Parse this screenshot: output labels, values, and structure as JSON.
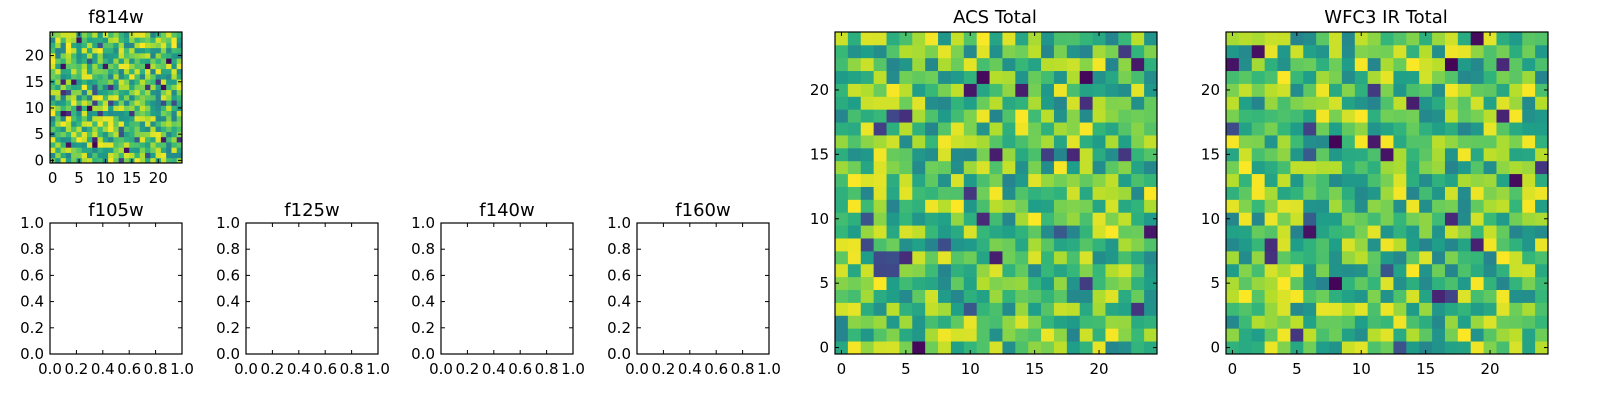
{
  "figure": {
    "panels": [
      {
        "key": "f814w",
        "title": "f814w",
        "kind": "image"
      },
      {
        "key": "f105w",
        "title": "f105w",
        "kind": "empty"
      },
      {
        "key": "f125w",
        "title": "f125w",
        "kind": "empty"
      },
      {
        "key": "f140w",
        "title": "f140w",
        "kind": "empty"
      },
      {
        "key": "f160w",
        "title": "f160w",
        "kind": "empty"
      },
      {
        "key": "acs_total",
        "title": "ACS Total",
        "kind": "image"
      },
      {
        "key": "wfc3_total",
        "title": "WFC3 IR Total",
        "kind": "image"
      }
    ]
  },
  "chart_data": [
    {
      "type": "heatmap",
      "title": "f814w",
      "x_ticks": [
        "0",
        "5",
        "10",
        "15",
        "20"
      ],
      "y_ticks": [
        "0",
        "5",
        "10",
        "15",
        "20"
      ],
      "xlim": [
        -0.5,
        24.5
      ],
      "ylim": [
        -0.5,
        24.5
      ],
      "grid_size": [
        25,
        25
      ],
      "colormap": "viridis",
      "seed": 814
    },
    {
      "type": "empty",
      "title": "f105w",
      "x_ticks": [
        "0.0",
        "0.2",
        "0.4",
        "0.6",
        "0.8",
        "1.0"
      ],
      "y_ticks": [
        "0.0",
        "0.2",
        "0.4",
        "0.6",
        "0.8",
        "1.0"
      ],
      "xlim": [
        0,
        1
      ],
      "ylim": [
        0,
        1
      ]
    },
    {
      "type": "empty",
      "title": "f125w",
      "x_ticks": [
        "0.0",
        "0.2",
        "0.4",
        "0.6",
        "0.8",
        "1.0"
      ],
      "y_ticks": [
        "0.0",
        "0.2",
        "0.4",
        "0.6",
        "0.8",
        "1.0"
      ],
      "xlim": [
        0,
        1
      ],
      "ylim": [
        0,
        1
      ]
    },
    {
      "type": "empty",
      "title": "f140w",
      "x_ticks": [
        "0.0",
        "0.2",
        "0.4",
        "0.6",
        "0.8",
        "1.0"
      ],
      "y_ticks": [
        "0.0",
        "0.2",
        "0.4",
        "0.6",
        "0.8",
        "1.0"
      ],
      "xlim": [
        0,
        1
      ],
      "ylim": [
        0,
        1
      ]
    },
    {
      "type": "empty",
      "title": "f160w",
      "x_ticks": [
        "0.0",
        "0.2",
        "0.4",
        "0.6",
        "0.8",
        "1.0"
      ],
      "y_ticks": [
        "0.0",
        "0.2",
        "0.4",
        "0.6",
        "0.8",
        "1.0"
      ],
      "xlim": [
        0,
        1
      ],
      "ylim": [
        0,
        1
      ]
    },
    {
      "type": "heatmap",
      "title": "ACS Total",
      "x_ticks": [
        "0",
        "5",
        "10",
        "15",
        "20"
      ],
      "y_ticks": [
        "0",
        "5",
        "10",
        "15",
        "20"
      ],
      "xlim": [
        -0.5,
        24.5
      ],
      "ylim": [
        -0.5,
        24.5
      ],
      "grid_size": [
        25,
        25
      ],
      "colormap": "viridis",
      "seed": 101
    },
    {
      "type": "heatmap",
      "title": "WFC3 IR Total",
      "x_ticks": [
        "0",
        "5",
        "10",
        "15",
        "20"
      ],
      "y_ticks": [
        "0",
        "5",
        "10",
        "15",
        "20"
      ],
      "xlim": [
        -0.5,
        24.5
      ],
      "ylim": [
        -0.5,
        24.5
      ],
      "grid_size": [
        25,
        25
      ],
      "colormap": "viridis",
      "seed": 303
    }
  ]
}
